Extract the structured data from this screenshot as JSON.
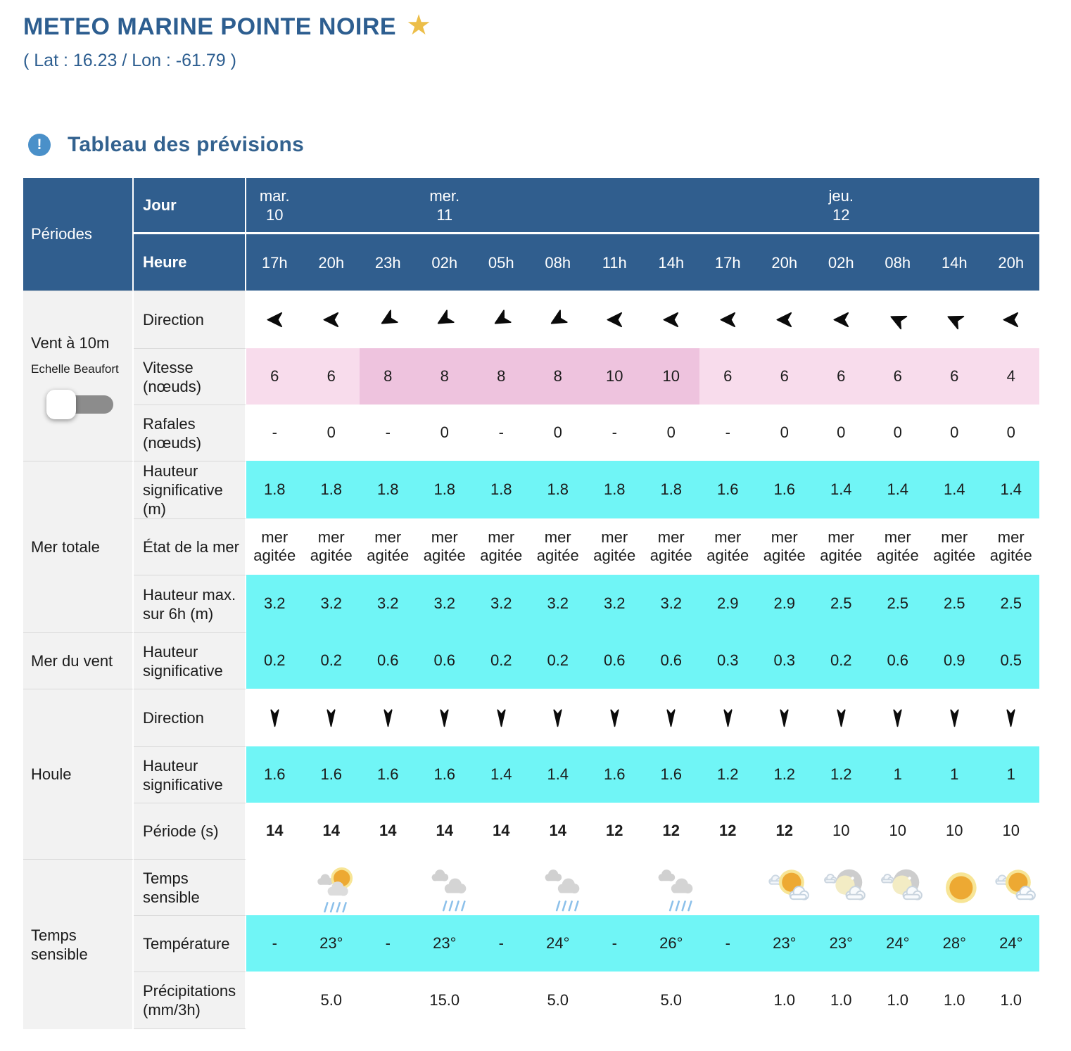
{
  "page": {
    "title": "METEO MARINE POINTE NOIRE",
    "coords": "( Lat : 16.23 / Lon : -61.79 )",
    "section_title": "Tableau des prévisions",
    "star_icon": "★",
    "info_icon": "!"
  },
  "colors": {
    "header_blue": "#305e8e",
    "title_blue": "#2d5e90",
    "cyan": "#70f5f6",
    "pink_light": "#f8dcec",
    "pink_dark": "#eec3de",
    "label_gray": "#f2f2f2",
    "star_gold": "#ecbe49",
    "info_blue": "#4a90c9"
  },
  "table": {
    "periods_label": "Périodes",
    "jour_label": "Jour",
    "heure_label": "Heure",
    "days": [
      {
        "name": "mar.",
        "date": "10",
        "col": 0
      },
      {
        "name": "mer.",
        "date": "11",
        "col": 3
      },
      {
        "name": "jeu.",
        "date": "12",
        "col": 10
      }
    ],
    "hours": [
      "17h",
      "20h",
      "23h",
      "02h",
      "05h",
      "08h",
      "11h",
      "14h",
      "17h",
      "20h",
      "02h",
      "08h",
      "14h",
      "20h"
    ],
    "wind": {
      "group_label": "Vent à 10m",
      "group_sub": "Echelle Beaufort",
      "toggle_state": "off",
      "direction": {
        "label": "Direction",
        "rotations": [
          270,
          270,
          240,
          240,
          240,
          240,
          270,
          270,
          270,
          270,
          270,
          295,
          295,
          270
        ]
      },
      "vitesse": {
        "label": "Vitesse (nœuds)",
        "values": [
          "6",
          "6",
          "8",
          "8",
          "8",
          "8",
          "10",
          "10",
          "6",
          "6",
          "6",
          "6",
          "6",
          "4"
        ],
        "band": [
          "light",
          "light",
          "dark",
          "dark",
          "dark",
          "dark",
          "dark",
          "dark",
          "light",
          "light",
          "light",
          "light",
          "light",
          "light"
        ]
      },
      "rafales": {
        "label": "Rafales (nœuds)",
        "values": [
          "-",
          "0",
          "-",
          "0",
          "-",
          "0",
          "-",
          "0",
          "-",
          "0",
          "0",
          "0",
          "0",
          "0"
        ]
      }
    },
    "mer_totale": {
      "group_label": "Mer totale",
      "hauteur_sig": {
        "label": "Hauteur significative (m)",
        "values": [
          "1.8",
          "1.8",
          "1.8",
          "1.8",
          "1.8",
          "1.8",
          "1.8",
          "1.8",
          "1.6",
          "1.6",
          "1.4",
          "1.4",
          "1.4",
          "1.4"
        ]
      },
      "etat": {
        "label": "État de la mer",
        "values": [
          "mer agitée",
          "mer agitée",
          "mer agitée",
          "mer agitée",
          "mer agitée",
          "mer agitée",
          "mer agitée",
          "mer agitée",
          "mer agitée",
          "mer agitée",
          "mer agitée",
          "mer agitée",
          "mer agitée",
          "mer agitée"
        ]
      },
      "hauteur_max": {
        "label": "Hauteur max. sur 6h (m)",
        "values": [
          "3.2",
          "3.2",
          "3.2",
          "3.2",
          "3.2",
          "3.2",
          "3.2",
          "3.2",
          "2.9",
          "2.9",
          "2.5",
          "2.5",
          "2.5",
          "2.5"
        ]
      }
    },
    "mer_du_vent": {
      "group_label": "Mer du vent",
      "hauteur_sig": {
        "label": "Hauteur significative",
        "values": [
          "0.2",
          "0.2",
          "0.6",
          "0.6",
          "0.2",
          "0.2",
          "0.6",
          "0.6",
          "0.3",
          "0.3",
          "0.2",
          "0.6",
          "0.9",
          "0.5"
        ]
      }
    },
    "houle": {
      "group_label": "Houle",
      "direction": {
        "label": "Direction",
        "rotations": [
          180,
          180,
          180,
          180,
          180,
          180,
          180,
          180,
          180,
          180,
          180,
          180,
          180,
          180
        ]
      },
      "hauteur_sig": {
        "label": "Hauteur significative",
        "values": [
          "1.6",
          "1.6",
          "1.6",
          "1.6",
          "1.4",
          "1.4",
          "1.6",
          "1.6",
          "1.2",
          "1.2",
          "1.2",
          "1",
          "1",
          "1"
        ]
      },
      "periode": {
        "label": "Période (s)",
        "values": [
          "14",
          "14",
          "14",
          "14",
          "14",
          "14",
          "12",
          "12",
          "12",
          "12",
          "10",
          "10",
          "10",
          "10"
        ],
        "bold": [
          true,
          true,
          true,
          true,
          true,
          true,
          true,
          true,
          true,
          true,
          false,
          false,
          false,
          false
        ]
      }
    },
    "temps": {
      "group_label": "Temps sensible",
      "sensible": {
        "label": "Temps sensible",
        "icons": [
          "",
          "sun-rain",
          "",
          "rain",
          "",
          "rain",
          "",
          "rain",
          "",
          "sun-cloud",
          "moon-cloud",
          "moon-cloud",
          "sun",
          "sun-cloud"
        ]
      },
      "temperature": {
        "label": "Température",
        "values": [
          "-",
          "23°",
          "-",
          "23°",
          "-",
          "24°",
          "-",
          "26°",
          "-",
          "23°",
          "23°",
          "24°",
          "28°",
          "24°"
        ]
      },
      "precipitations": {
        "label": "Précipitations (mm/3h)",
        "values": [
          "",
          "5.0",
          "",
          "15.0",
          "",
          "5.0",
          "",
          "5.0",
          "",
          "1.0",
          "1.0",
          "1.0",
          "1.0",
          "1.0"
        ]
      }
    }
  }
}
